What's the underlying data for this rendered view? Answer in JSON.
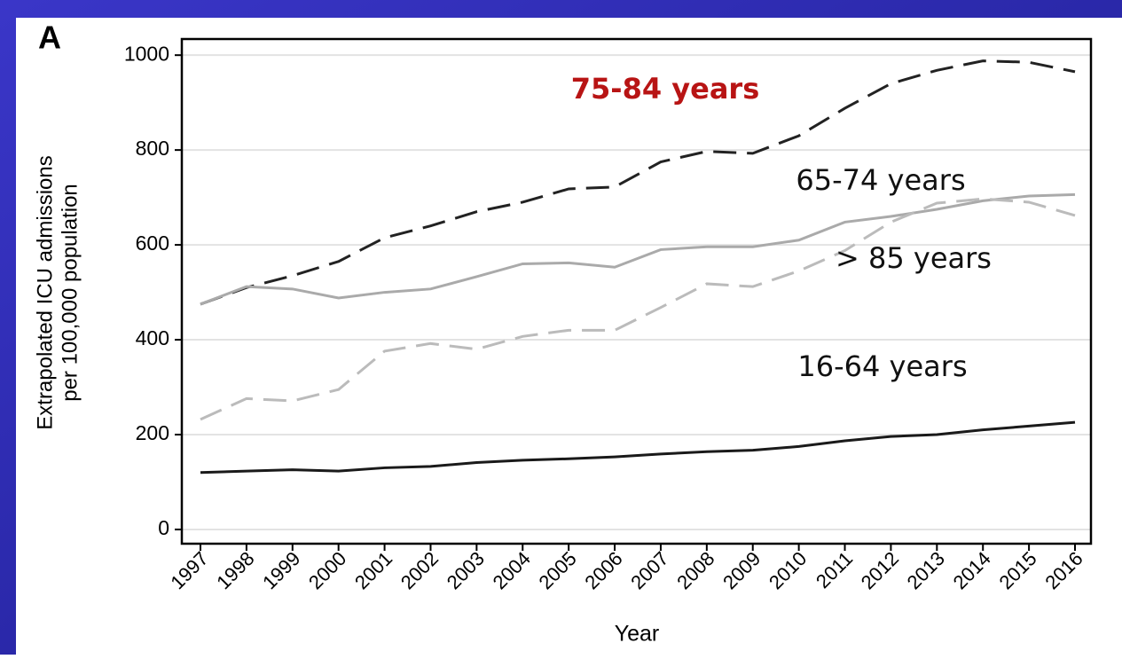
{
  "panel_label": "A",
  "chart_data": {
    "type": "line",
    "x_label": "Year",
    "y_label": [
      "Extrapolated ICU admissions",
      "per 100,000 population"
    ],
    "categories": [
      "1997",
      "1998",
      "1999",
      "2000",
      "2001",
      "2002",
      "2003",
      "2004",
      "2005",
      "2006",
      "2007",
      "2008",
      "2009",
      "2010",
      "2011",
      "2012",
      "2013",
      "2014",
      "2015",
      "2016"
    ],
    "series": [
      {
        "name": "75-84 years",
        "color": "#222222",
        "dashed": true,
        "label_color": "#b81414",
        "label_bold": true,
        "values": [
          475,
          510,
          535,
          565,
          615,
          640,
          670,
          690,
          718,
          722,
          775,
          797,
          793,
          830,
          888,
          940,
          968,
          988,
          985,
          965
        ]
      },
      {
        "name": "65-74 years",
        "color": "#aaaaaa",
        "dashed": false,
        "label_color": "#111111",
        "label_bold": false,
        "values": [
          475,
          512,
          507,
          488,
          500,
          507,
          533,
          560,
          562,
          553,
          590,
          596,
          596,
          610,
          648,
          660,
          675,
          693,
          703,
          706
        ]
      },
      {
        "name": "> 85 years",
        "color": "#bbbbbb",
        "dashed": true,
        "label_color": "#111111",
        "label_bold": false,
        "values": [
          232,
          276,
          271,
          295,
          376,
          392,
          380,
          407,
          420,
          420,
          468,
          518,
          512,
          545,
          588,
          648,
          688,
          697,
          690,
          662
        ]
      },
      {
        "name": "16-64 years",
        "color": "#1a1a1a",
        "dashed": false,
        "label_color": "#111111",
        "label_bold": false,
        "values": [
          120,
          123,
          126,
          123,
          130,
          133,
          141,
          146,
          149,
          153,
          159,
          164,
          167,
          175,
          187,
          196,
          200,
          210,
          218,
          226
        ]
      }
    ],
    "ylim": [
      -30,
      1034
    ],
    "yticks": [
      0,
      200,
      400,
      600,
      800,
      1000
    ],
    "grid": true
  }
}
